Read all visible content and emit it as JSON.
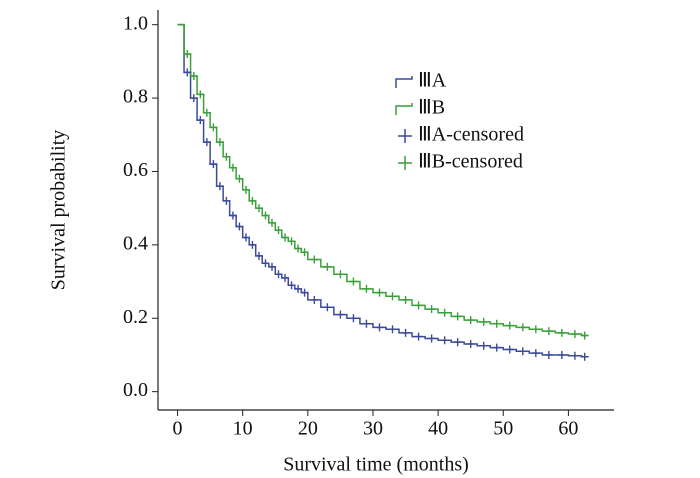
{
  "chart_data": {
    "type": "step",
    "xlabel": "Survival time (months)",
    "ylabel": "Survival probability",
    "xlim": [
      -3,
      67
    ],
    "xticks": [
      0,
      10,
      20,
      30,
      40,
      50,
      60
    ],
    "ylim": [
      -0.05,
      1.04
    ],
    "yticks": [
      {
        "value": 0,
        "label": "0.0"
      },
      0.2,
      0.4,
      0.6,
      0.8,
      {
        "value": 1,
        "label": "1.0"
      }
    ],
    "legend": "upper-right",
    "series": [
      {
        "name": "ⅢA",
        "color": "#3b4b9a",
        "style": "step",
        "x": [
          0,
          1,
          2,
          3,
          4,
          5,
          6,
          7,
          8,
          9,
          10,
          11,
          12,
          13,
          14,
          15,
          16,
          17,
          18,
          19,
          20,
          22,
          24,
          26,
          28,
          30,
          32,
          34,
          36,
          38,
          40,
          42,
          44,
          46,
          48,
          50,
          52,
          54,
          56,
          58,
          60,
          62,
          63
        ],
        "values": [
          1.0,
          0.87,
          0.8,
          0.74,
          0.68,
          0.62,
          0.56,
          0.52,
          0.48,
          0.45,
          0.42,
          0.4,
          0.37,
          0.35,
          0.34,
          0.32,
          0.31,
          0.29,
          0.28,
          0.27,
          0.25,
          0.23,
          0.21,
          0.2,
          0.185,
          0.175,
          0.17,
          0.16,
          0.15,
          0.145,
          0.14,
          0.135,
          0.13,
          0.125,
          0.12,
          0.115,
          0.11,
          0.105,
          0.1,
          0.1,
          0.098,
          0.095,
          0.095
        ]
      },
      {
        "name": "ⅢB",
        "color": "#3aa03a",
        "style": "step",
        "x": [
          0,
          1,
          2,
          3,
          4,
          5,
          6,
          7,
          8,
          9,
          10,
          11,
          12,
          13,
          14,
          15,
          16,
          17,
          18,
          19,
          20,
          22,
          24,
          26,
          28,
          30,
          32,
          34,
          36,
          38,
          40,
          42,
          44,
          46,
          48,
          50,
          52,
          54,
          56,
          58,
          60,
          62,
          63
        ],
        "values": [
          1.0,
          0.92,
          0.86,
          0.81,
          0.76,
          0.72,
          0.68,
          0.64,
          0.61,
          0.58,
          0.55,
          0.52,
          0.5,
          0.48,
          0.46,
          0.44,
          0.42,
          0.41,
          0.39,
          0.38,
          0.36,
          0.34,
          0.32,
          0.3,
          0.28,
          0.27,
          0.26,
          0.25,
          0.235,
          0.225,
          0.215,
          0.205,
          0.195,
          0.19,
          0.185,
          0.18,
          0.175,
          0.17,
          0.165,
          0.16,
          0.157,
          0.153,
          0.153
        ]
      },
      {
        "name": "ⅢA-censored",
        "color": "#3b4b9a",
        "style": "censor",
        "x": [
          1.5,
          2.5,
          3.5,
          4.5,
          5.5,
          6.5,
          7.5,
          8.5,
          9.5,
          10.5,
          11.5,
          12.5,
          13.5,
          14.5,
          15.5,
          16.5,
          17.5,
          18.5,
          19.5,
          21,
          23,
          25,
          27,
          29,
          31,
          33,
          35,
          37,
          39,
          41,
          43,
          45,
          47,
          49,
          51,
          53,
          55,
          57,
          59,
          61,
          62.5
        ],
        "values": [
          0.87,
          0.8,
          0.74,
          0.68,
          0.62,
          0.56,
          0.52,
          0.48,
          0.45,
          0.42,
          0.4,
          0.37,
          0.35,
          0.34,
          0.32,
          0.31,
          0.29,
          0.28,
          0.27,
          0.25,
          0.23,
          0.21,
          0.2,
          0.185,
          0.175,
          0.17,
          0.16,
          0.15,
          0.145,
          0.14,
          0.135,
          0.13,
          0.125,
          0.12,
          0.115,
          0.11,
          0.105,
          0.1,
          0.1,
          0.098,
          0.095
        ]
      },
      {
        "name": "ⅢB-censored",
        "color": "#3aa03a",
        "style": "censor",
        "x": [
          1.5,
          2.5,
          3.5,
          4.5,
          5.5,
          6.5,
          7.5,
          8.5,
          9.5,
          10.5,
          11.5,
          12.5,
          13.5,
          14.5,
          15.5,
          16.5,
          17.5,
          18.5,
          19.5,
          21,
          23,
          25,
          27,
          29,
          31,
          33,
          35,
          37,
          39,
          41,
          43,
          45,
          47,
          49,
          51,
          53,
          55,
          57,
          59,
          61,
          62.5
        ],
        "values": [
          0.92,
          0.86,
          0.81,
          0.76,
          0.72,
          0.68,
          0.64,
          0.61,
          0.58,
          0.55,
          0.52,
          0.5,
          0.48,
          0.46,
          0.44,
          0.42,
          0.41,
          0.39,
          0.38,
          0.36,
          0.34,
          0.32,
          0.3,
          0.28,
          0.27,
          0.26,
          0.25,
          0.235,
          0.225,
          0.215,
          0.205,
          0.195,
          0.19,
          0.185,
          0.18,
          0.175,
          0.17,
          0.165,
          0.16,
          0.157,
          0.153
        ]
      }
    ]
  }
}
